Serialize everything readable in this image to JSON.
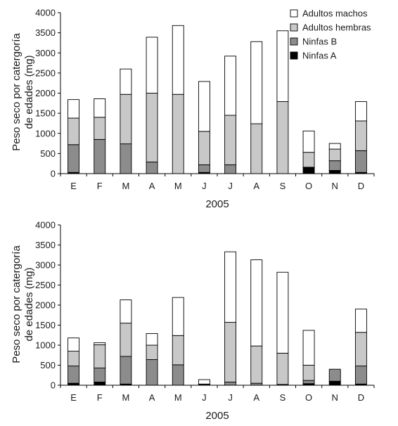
{
  "colors": {
    "adultos_machos": "#ffffff",
    "adultos_hembras": "#c8c8c8",
    "ninfas_b": "#8c8c8c",
    "ninfas_a": "#000000"
  },
  "chart_data": [
    {
      "type": "bar",
      "stacked": true,
      "categories": [
        "E",
        "F",
        "M",
        "A",
        "M",
        "J",
        "J",
        "A",
        "S",
        "O",
        "N",
        "D"
      ],
      "xlabel": "2005",
      "ylabel_lines": [
        "Peso seco por catergoría",
        "de edades (mg)"
      ],
      "ylim": [
        0,
        4000
      ],
      "yticks": [
        0,
        500,
        1000,
        1500,
        2000,
        2500,
        3000,
        3500,
        4000
      ],
      "legend": {
        "placement": "top-right",
        "order": [
          "Adultos machos",
          "Adultos hembras",
          "Ninfas B",
          "Ninfas A"
        ]
      },
      "series": [
        {
          "name": "Ninfas A",
          "color": "#000000",
          "values": [
            30,
            0,
            0,
            0,
            0,
            30,
            0,
            0,
            0,
            150,
            80,
            30
          ]
        },
        {
          "name": "Ninfas B",
          "color": "#8c8c8c",
          "values": [
            690,
            850,
            740,
            290,
            0,
            190,
            220,
            0,
            0,
            10,
            240,
            540
          ]
        },
        {
          "name": "Adultos hembras",
          "color": "#c8c8c8",
          "values": [
            660,
            550,
            1230,
            1710,
            1970,
            830,
            1230,
            1240,
            1790,
            370,
            290,
            740
          ]
        },
        {
          "name": "Adultos machos",
          "color": "#ffffff",
          "values": [
            460,
            460,
            630,
            1390,
            1710,
            1240,
            1470,
            2040,
            1760,
            530,
            140,
            480
          ]
        }
      ]
    },
    {
      "type": "bar",
      "stacked": true,
      "categories": [
        "E",
        "F",
        "M",
        "A",
        "M",
        "J",
        "J",
        "A",
        "S",
        "O",
        "N",
        "D"
      ],
      "xlabel": "2005",
      "ylabel_lines": [
        "Peso seco por catergoría",
        "de edades (mg)"
      ],
      "ylim": [
        0,
        4000
      ],
      "yticks": [
        0,
        500,
        1000,
        1500,
        2000,
        2500,
        3000,
        3500,
        4000
      ],
      "series": [
        {
          "name": "Ninfas A",
          "color": "#000000",
          "values": [
            50,
            80,
            30,
            0,
            0,
            0,
            0,
            0,
            0,
            40,
            100,
            30
          ]
        },
        {
          "name": "Ninfas B",
          "color": "#8c8c8c",
          "values": [
            430,
            350,
            690,
            640,
            510,
            10,
            80,
            50,
            20,
            80,
            300,
            450
          ]
        },
        {
          "name": "Adultos hembras",
          "color": "#c8c8c8",
          "values": [
            370,
            580,
            830,
            360,
            730,
            20,
            1490,
            930,
            780,
            380,
            0,
            840
          ]
        },
        {
          "name": "Adultos machos",
          "color": "#ffffff",
          "values": [
            330,
            50,
            580,
            290,
            950,
            110,
            1760,
            2150,
            2020,
            870,
            0,
            580
          ]
        }
      ]
    }
  ]
}
